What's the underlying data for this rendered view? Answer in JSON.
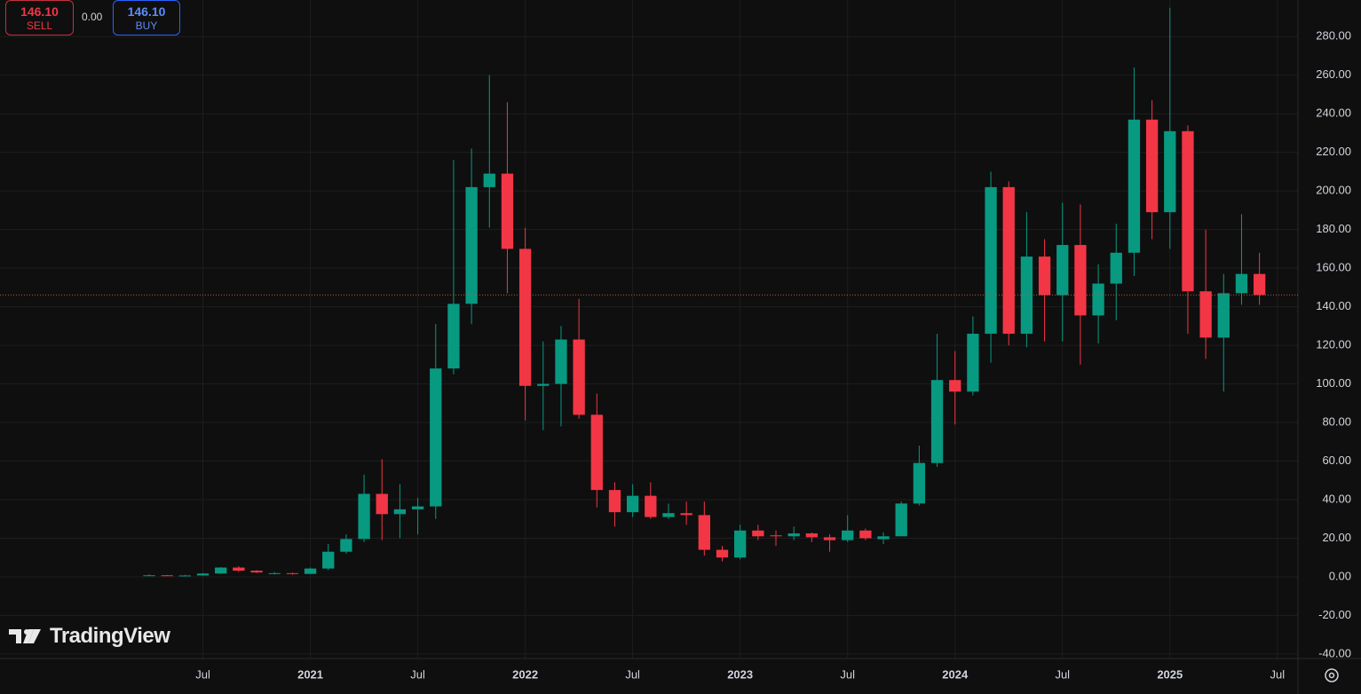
{
  "ui": {
    "sell_price": "146.10",
    "sell_label": "SELL",
    "spread": "0.00",
    "buy_price": "146.10",
    "buy_label": "BUY",
    "logo": "TradingView"
  },
  "chart_data": {
    "type": "candlestick",
    "up_color": "#089981",
    "down_color": "#f23645",
    "grid": true,
    "open": [
      0.6,
      0.8,
      0.6,
      0.7,
      1.7,
      4.8,
      3.2,
      1.6,
      1.9,
      1.5,
      4.3,
      13,
      19.6,
      43,
      32.5,
      35,
      36.5,
      108,
      141.5,
      202,
      209,
      170,
      99,
      100,
      123,
      84,
      45,
      33.5,
      42,
      31,
      33,
      32,
      14,
      10,
      24,
      21.5,
      21,
      22.5,
      20.5,
      19,
      24,
      19.5,
      21,
      38,
      59,
      102,
      96,
      126,
      202,
      126,
      166,
      146,
      172,
      135.5,
      152,
      168,
      237,
      189,
      231,
      148,
      124,
      147,
      157
    ],
    "high": [
      1.3,
      1.0,
      1.0,
      2.0,
      5.0,
      5.5,
      3.5,
      2.5,
      2.2,
      4.8,
      17,
      22,
      53,
      61,
      48,
      41,
      131,
      216,
      222,
      260,
      246,
      181,
      122,
      130,
      144,
      95,
      49,
      48,
      49,
      38,
      39,
      39,
      16,
      27,
      27,
      24,
      26,
      23,
      22,
      32,
      25,
      23,
      39,
      68,
      126,
      117,
      135,
      210,
      205,
      189,
      175,
      194,
      193,
      162,
      183,
      264,
      247,
      295,
      234,
      180,
      157,
      188,
      168
    ],
    "low": [
      0.5,
      0.5,
      0.5,
      0.6,
      1.6,
      2.5,
      1.9,
      1.2,
      1.1,
      1.4,
      3.5,
      12,
      18,
      19,
      20,
      22,
      30,
      105,
      131,
      181,
      147,
      81,
      76,
      78,
      82,
      36,
      26,
      31,
      30,
      30,
      27,
      11,
      8,
      9,
      19,
      16,
      19,
      18,
      13,
      18,
      19,
      17,
      21,
      37,
      57,
      79,
      94,
      111,
      120,
      119,
      122,
      122,
      110,
      121,
      133,
      156,
      175,
      170,
      126,
      113,
      96,
      141,
      141
    ],
    "close": [
      0.8,
      0.6,
      0.7,
      1.7,
      4.8,
      3.2,
      2.3,
      1.9,
      1.5,
      4.3,
      13,
      19.6,
      43,
      32.5,
      35,
      36.5,
      108,
      141.5,
      202,
      209,
      170,
      99,
      100,
      123,
      84,
      45,
      33.5,
      42,
      31,
      33,
      32,
      14,
      10,
      24,
      21,
      21,
      22.5,
      20.5,
      19,
      24,
      20,
      21,
      38,
      59,
      102,
      96,
      126,
      202,
      126,
      166,
      146,
      172,
      135.5,
      152,
      168,
      237,
      189,
      231,
      148,
      124,
      147,
      157,
      146.1
    ],
    "last_price": 146.1,
    "last_price_color": "#b85a3a",
    "xlim": [
      -8.33,
      64.15
    ],
    "xticks": [
      {
        "value": 3,
        "label": "Jul"
      },
      {
        "value": 9,
        "label": "2021"
      },
      {
        "value": 15,
        "label": "Jul"
      },
      {
        "value": 21,
        "label": "2022"
      },
      {
        "value": 27,
        "label": "Jul"
      },
      {
        "value": 33,
        "label": "2023"
      },
      {
        "value": 39,
        "label": "Jul"
      },
      {
        "value": 45,
        "label": "2024"
      },
      {
        "value": 51,
        "label": "Jul"
      },
      {
        "value": 57,
        "label": "2025"
      },
      {
        "value": 63,
        "label": "Jul"
      }
    ],
    "ylim": [
      -40.5,
      299
    ],
    "yticks": [
      {
        "value": -40,
        "label": "-40.00"
      },
      {
        "value": -20,
        "label": "-20.00"
      },
      {
        "value": 0,
        "label": "0.00"
      },
      {
        "value": 20,
        "label": "20.00"
      },
      {
        "value": 40,
        "label": "40.00"
      },
      {
        "value": 60,
        "label": "60.00"
      },
      {
        "value": 80,
        "label": "80.00"
      },
      {
        "value": 100,
        "label": "100.00"
      },
      {
        "value": 120,
        "label": "120.00"
      },
      {
        "value": 140,
        "label": "140.00"
      },
      {
        "value": 160,
        "label": "160.00"
      },
      {
        "value": 180,
        "label": "180.00"
      },
      {
        "value": 200,
        "label": "200.00"
      },
      {
        "value": 220,
        "label": "220.00"
      },
      {
        "value": 240,
        "label": "240.00"
      },
      {
        "value": 260,
        "label": "260.00"
      },
      {
        "value": 280,
        "label": "280.00"
      }
    ]
  }
}
